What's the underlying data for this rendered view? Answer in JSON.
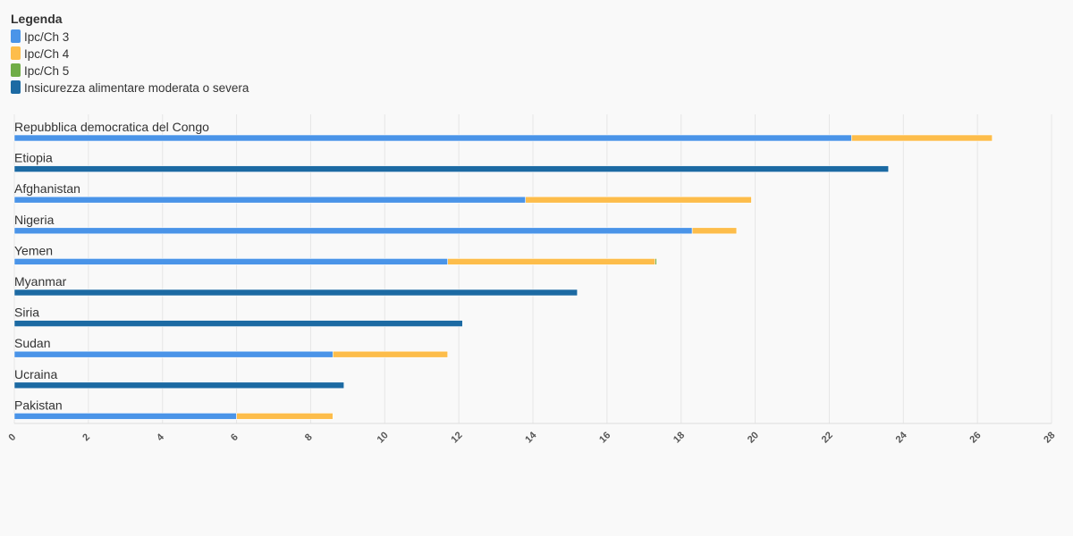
{
  "chart_data": {
    "type": "stacked_bar_horizontal",
    "legend_title": "Legenda",
    "categories": [
      "Repubblica democratica del Congo",
      "Etiopia",
      "Afghanistan",
      "Nigeria",
      "Yemen",
      "Myanmar",
      "Siria",
      "Sudan",
      "Ucraina",
      "Pakistan"
    ],
    "series": [
      {
        "name": "Ipc/Ch 3",
        "color": "#4a94e8",
        "values": [
          22.6,
          null,
          13.8,
          18.3,
          11.7,
          null,
          null,
          8.6,
          null,
          6.0
        ]
      },
      {
        "name": "Ipc/Ch 4",
        "color": "#fdbd4b",
        "values": [
          3.8,
          null,
          6.1,
          1.2,
          5.6,
          null,
          null,
          3.1,
          null,
          2.6
        ]
      },
      {
        "name": "Ipc/Ch 5",
        "color": "#70ad47",
        "values": [
          null,
          null,
          null,
          null,
          0.04,
          null,
          null,
          null,
          null,
          null
        ]
      },
      {
        "name": "Insicurezza alimentare moderata o severa",
        "color": "#1c6aa3",
        "values": [
          null,
          23.6,
          null,
          null,
          null,
          15.2,
          12.1,
          null,
          8.9,
          null
        ]
      }
    ],
    "xlim": [
      0,
      28
    ],
    "xticks": [
      0,
      2,
      4,
      6,
      8,
      10,
      12,
      14,
      16,
      18,
      20,
      22,
      24,
      26,
      28
    ],
    "grid": true
  }
}
